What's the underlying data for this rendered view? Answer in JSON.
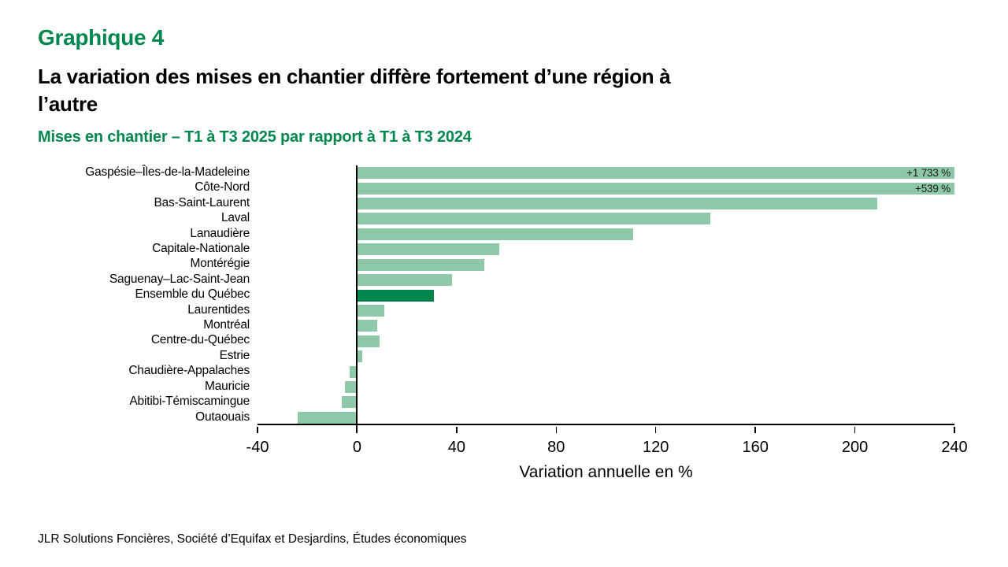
{
  "header": {
    "kicker": "Graphique 4",
    "title_lines": [
      "La variation des mises en chantier diffère fortement d’une région à",
      "l’autre"
    ],
    "subtitle": "Mises en chantier – T1 à T3 2025 par rapport à T1 à T3 2024"
  },
  "chart_data": {
    "type": "bar",
    "orientation": "horizontal",
    "title": "Mises en chantier – T1 à T3 2025 par rapport à T1 à T3 2024",
    "xlabel": "Variation annuelle en %",
    "xlim": [
      -40,
      240
    ],
    "xticks": [
      "-40",
      "0",
      "40",
      "80",
      "120",
      "160",
      "200",
      "240"
    ],
    "grid": false,
    "legend": false,
    "categories": [
      "Gaspésie–Îles-de-la-Madeleine",
      "Côte-Nord",
      "Bas-Saint-Laurent",
      "Laval",
      "Lanaudière",
      "Capitale-Nationale",
      "Montérégie",
      "Saguenay–Lac-Saint-Jean",
      "Ensemble du Québec",
      "Laurentides",
      "Montréal",
      "Centre-du-Québec",
      "Estrie",
      "Chaudière-Appalaches",
      "Mauricie",
      "Abitibi-Témiscamingue",
      "Outaouais"
    ],
    "values": [
      1733,
      539,
      209,
      142,
      111,
      57,
      51,
      38,
      31,
      11,
      8,
      9,
      2,
      -3,
      -5,
      -6,
      -24
    ],
    "bar_labels": [
      "+1 733 %",
      "+539 %",
      "",
      "",
      "",
      "",
      "",
      "",
      "",
      "",
      "",
      "",
      "",
      "",
      "",
      "",
      ""
    ],
    "highlight_category": "Ensemble du Québec",
    "colors": {
      "bar": "#8dc8a8",
      "highlight_bar": "#00854c",
      "axis": "#000000"
    }
  },
  "footer": {
    "source": "JLR Solutions Foncières, Société d’Equifax et Desjardins, Études économiques"
  },
  "theme": {
    "accent_green": "#00874e"
  }
}
